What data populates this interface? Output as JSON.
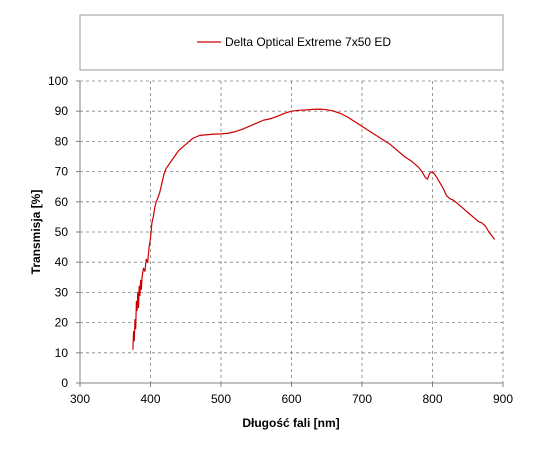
{
  "chart_data": {
    "type": "line",
    "title": "",
    "xlabel": "Długość fali [nm]",
    "ylabel": "Transmisja [%]",
    "xlim": [
      300,
      900
    ],
    "ylim": [
      0,
      100
    ],
    "x_ticks": [
      300,
      400,
      500,
      600,
      700,
      800,
      900
    ],
    "y_ticks": [
      0,
      10,
      20,
      30,
      40,
      50,
      60,
      70,
      80,
      90,
      100
    ],
    "grid": true,
    "grid_style": "dashed",
    "legend_position": "top",
    "series": [
      {
        "name": "Delta Optical Extreme 7x50 ED",
        "color": "#cc0000",
        "points": [
          [
            375,
            11
          ],
          [
            376,
            17
          ],
          [
            377,
            14
          ],
          [
            378,
            21
          ],
          [
            379,
            18
          ],
          [
            380,
            27
          ],
          [
            381,
            24
          ],
          [
            382,
            30
          ],
          [
            383,
            25
          ],
          [
            384,
            32
          ],
          [
            385,
            29
          ],
          [
            386,
            34
          ],
          [
            387,
            31
          ],
          [
            388,
            35
          ],
          [
            390,
            38
          ],
          [
            392,
            37
          ],
          [
            394,
            41
          ],
          [
            396,
            40
          ],
          [
            398,
            45
          ],
          [
            400,
            48
          ],
          [
            402,
            53
          ],
          [
            404,
            55
          ],
          [
            406,
            58
          ],
          [
            408,
            60
          ],
          [
            410,
            61
          ],
          [
            413,
            63
          ],
          [
            416,
            66
          ],
          [
            419,
            69
          ],
          [
            422,
            71
          ],
          [
            425,
            72
          ],
          [
            428,
            73
          ],
          [
            431,
            74
          ],
          [
            434,
            75
          ],
          [
            437,
            76
          ],
          [
            440,
            77
          ],
          [
            445,
            78
          ],
          [
            450,
            79
          ],
          [
            455,
            80
          ],
          [
            460,
            81
          ],
          [
            465,
            81.5
          ],
          [
            470,
            82
          ],
          [
            480,
            82.2
          ],
          [
            490,
            82.4
          ],
          [
            500,
            82.5
          ],
          [
            510,
            82.7
          ],
          [
            520,
            83.2
          ],
          [
            530,
            84
          ],
          [
            540,
            85
          ],
          [
            550,
            86
          ],
          [
            560,
            87
          ],
          [
            570,
            87.5
          ],
          [
            580,
            88.3
          ],
          [
            590,
            89.3
          ],
          [
            600,
            90
          ],
          [
            610,
            90.3
          ],
          [
            620,
            90.4
          ],
          [
            630,
            90.6
          ],
          [
            640,
            90.7
          ],
          [
            650,
            90.5
          ],
          [
            660,
            90
          ],
          [
            670,
            89.2
          ],
          [
            680,
            88
          ],
          [
            690,
            86.5
          ],
          [
            700,
            85
          ],
          [
            710,
            83.5
          ],
          [
            720,
            82
          ],
          [
            730,
            80.5
          ],
          [
            740,
            79
          ],
          [
            750,
            77
          ],
          [
            760,
            75
          ],
          [
            770,
            73.5
          ],
          [
            780,
            71.5
          ],
          [
            785,
            70
          ],
          [
            790,
            68
          ],
          [
            793,
            67.5
          ],
          [
            796,
            69.5
          ],
          [
            800,
            70
          ],
          [
            805,
            68.5
          ],
          [
            810,
            66.5
          ],
          [
            815,
            64.5
          ],
          [
            820,
            62
          ],
          [
            825,
            61
          ],
          [
            830,
            60.5
          ],
          [
            835,
            59.5
          ],
          [
            840,
            58.5
          ],
          [
            845,
            57.5
          ],
          [
            850,
            56.5
          ],
          [
            855,
            55.5
          ],
          [
            860,
            54.5
          ],
          [
            865,
            53.5
          ],
          [
            870,
            53
          ],
          [
            875,
            52
          ],
          [
            880,
            50
          ],
          [
            885,
            48.5
          ],
          [
            888,
            47.5
          ]
        ]
      }
    ]
  }
}
